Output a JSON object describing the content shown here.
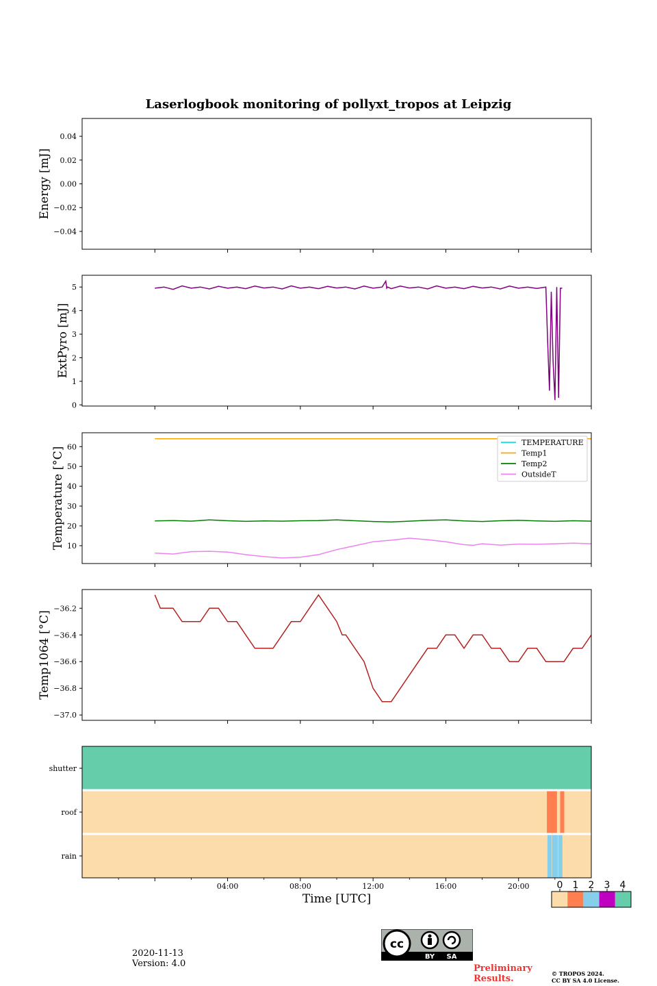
{
  "chart_data": {
    "title": "Laserlogbook monitoring of pollyxt_tropos at Leipzig",
    "xlabel": "Time [UTC]",
    "x_range_hours": [
      -4.0,
      24.0
    ],
    "panels": [
      {
        "id": "energy",
        "type": "line",
        "ylabel": "Energy [mJ]",
        "ylim": [
          -0.055,
          0.055
        ],
        "yticks": [
          0.04,
          0.02,
          0.0,
          -0.02,
          -0.04
        ],
        "ytick_labels": [
          "0.04",
          "0.02",
          "0.00",
          "−0.02",
          "−0.04"
        ],
        "series": []
      },
      {
        "id": "extpyro",
        "type": "line",
        "ylabel": "ExtPyro [mJ]",
        "ylim": [
          -0.05,
          5.5
        ],
        "yticks": [
          5,
          4,
          3,
          2,
          1,
          0
        ],
        "ytick_labels": [
          "5",
          "4",
          "3",
          "2",
          "1",
          "0"
        ],
        "series": [
          {
            "name": "ExtPyro",
            "color": "#800080",
            "x": [
              0.0,
              0.5,
              1.0,
              1.5,
              2.0,
              2.5,
              3.0,
              3.5,
              4.0,
              4.5,
              5.0,
              5.5,
              6.0,
              6.5,
              7.0,
              7.5,
              8.0,
              8.5,
              9.0,
              9.5,
              10.0,
              10.5,
              11.0,
              11.5,
              12.0,
              12.5,
              12.7,
              12.75,
              12.8,
              13.0,
              13.5,
              14.0,
              14.5,
              15.0,
              15.5,
              16.0,
              16.5,
              17.0,
              17.5,
              18.0,
              18.5,
              19.0,
              19.5,
              20.0,
              20.5,
              21.0,
              21.5,
              21.6,
              21.7,
              21.8,
              21.9,
              22.0,
              22.1,
              22.2,
              22.3,
              22.4
            ],
            "y": [
              4.95,
              5.0,
              4.9,
              5.05,
              4.95,
              5.0,
              4.92,
              5.03,
              4.95,
              5.0,
              4.93,
              5.04,
              4.96,
              5.0,
              4.92,
              5.05,
              4.95,
              5.0,
              4.93,
              5.03,
              4.96,
              5.0,
              4.92,
              5.04,
              4.95,
              5.0,
              5.25,
              4.95,
              5.0,
              4.93,
              5.04,
              4.96,
              5.0,
              4.92,
              5.05,
              4.95,
              5.0,
              4.93,
              5.03,
              4.96,
              5.0,
              4.92,
              5.04,
              4.95,
              5.0,
              4.94,
              5.0,
              2.7,
              0.6,
              4.8,
              1.8,
              0.2,
              5.0,
              0.3,
              4.95,
              4.95
            ]
          }
        ]
      },
      {
        "id": "temperature",
        "type": "line",
        "ylabel": "Temperature [°C]",
        "ylim": [
          1,
          67
        ],
        "yticks": [
          60,
          50,
          40,
          30,
          20,
          10
        ],
        "ytick_labels": [
          "60",
          "50",
          "40",
          "30",
          "20",
          "10"
        ],
        "legend_position": "upper-right",
        "series": [
          {
            "name": "TEMPERATURE",
            "color": "#00e5ee",
            "x": [],
            "y": []
          },
          {
            "name": "Temp1",
            "color": "#ffa500",
            "x": [
              0,
              24
            ],
            "y": [
              64,
              64
            ]
          },
          {
            "name": "Temp2",
            "color": "#008000",
            "x": [
              0,
              1,
              2,
              3,
              4,
              5,
              6,
              7,
              8,
              9,
              10,
              11,
              12,
              13,
              14,
              15,
              16,
              17,
              18,
              19,
              20,
              21,
              22,
              23,
              24
            ],
            "y": [
              22.5,
              22.7,
              22.4,
              23.0,
              22.6,
              22.3,
              22.5,
              22.4,
              22.6,
              22.7,
              23.0,
              22.6,
              22.2,
              22.0,
              22.4,
              22.8,
              23.0,
              22.5,
              22.2,
              22.6,
              22.8,
              22.5,
              22.3,
              22.6,
              22.4
            ]
          },
          {
            "name": "OutsideT",
            "color": "#ee82ee",
            "x": [
              0,
              1,
              2,
              3,
              4,
              5,
              6,
              7,
              8,
              9,
              10,
              11,
              12,
              13,
              14,
              15,
              16,
              17,
              17.5,
              18,
              19,
              20,
              21,
              22,
              23,
              24
            ],
            "y": [
              6.3,
              5.8,
              7.0,
              7.2,
              6.8,
              5.5,
              4.5,
              3.8,
              4.2,
              5.5,
              8.0,
              10.0,
              12.0,
              12.8,
              13.8,
              13.0,
              12.0,
              10.5,
              10.2,
              11.0,
              10.3,
              10.8,
              10.7,
              11.0,
              11.3,
              11.0
            ]
          }
        ]
      },
      {
        "id": "temp1064",
        "type": "line",
        "ylabel": "Temp1064 [°C]",
        "ylim": [
          -37.04,
          -36.06
        ],
        "yticks": [
          -36.2,
          -36.4,
          -36.6,
          -36.8,
          -37.0
        ],
        "ytick_labels": [
          "−36.2",
          "−36.4",
          "−36.6",
          "−36.8",
          "−37.0"
        ],
        "series": [
          {
            "name": "Temp1064",
            "color": "#b22222",
            "x": [
              0,
              0.3,
              0.5,
              1.0,
              1.5,
              2.0,
              2.5,
              3.0,
              3.5,
              4.0,
              4.5,
              5.0,
              5.5,
              6.0,
              6.5,
              7.0,
              7.5,
              8.0,
              8.5,
              9.0,
              9.5,
              10.0,
              10.3,
              10.5,
              11.0,
              11.5,
              12.0,
              12.5,
              13.0,
              13.5,
              14.0,
              14.5,
              15.0,
              15.5,
              16.0,
              16.5,
              17.0,
              17.5,
              18.0,
              18.5,
              19.0,
              19.5,
              20.0,
              20.5,
              21.0,
              21.5,
              22.0,
              22.5,
              23.0,
              23.5,
              24.0
            ],
            "y": [
              -36.1,
              -36.2,
              -36.2,
              -36.2,
              -36.3,
              -36.3,
              -36.3,
              -36.2,
              -36.2,
              -36.3,
              -36.3,
              -36.4,
              -36.5,
              -36.5,
              -36.5,
              -36.4,
              -36.3,
              -36.3,
              -36.2,
              -36.1,
              -36.2,
              -36.3,
              -36.4,
              -36.4,
              -36.5,
              -36.6,
              -36.8,
              -36.9,
              -36.9,
              -36.8,
              -36.7,
              -36.6,
              -36.5,
              -36.5,
              -36.4,
              -36.4,
              -36.5,
              -36.4,
              -36.4,
              -36.5,
              -36.5,
              -36.6,
              -36.6,
              -36.5,
              -36.5,
              -36.6,
              -36.6,
              -36.6,
              -36.5,
              -36.5,
              -36.4
            ]
          }
        ]
      },
      {
        "id": "status",
        "type": "heatmap",
        "rows": [
          "shutter",
          "roof",
          "rain"
        ],
        "row_base_values": [
          4,
          0,
          0
        ],
        "events": [
          {
            "row": "roof",
            "value": 1,
            "x": [
              21.67,
              21.83,
              22.0,
              22.4
            ]
          },
          {
            "row": "rain",
            "value": 2,
            "x": [
              21.7,
              21.95,
              22.05,
              22.3
            ]
          }
        ],
        "xticks": [
          0,
          4,
          8,
          12,
          16,
          20
        ],
        "xtick_labels": [
          "04:00",
          "08:00",
          "12:00",
          "16:00",
          "20:00"
        ],
        "xtick_label_hours": [
          4,
          8,
          12,
          16,
          20
        ],
        "colorbar": {
          "ticks": [
            "0",
            "1",
            "2",
            "3",
            "4"
          ],
          "colors": [
            "#fddcac",
            "#ff7f50",
            "#87ceeb",
            "#c000c0",
            "#66cdaa"
          ]
        }
      }
    ]
  },
  "footer": {
    "date": "2020-11-13",
    "version": "Version: 4.0",
    "preliminary_line1": "Preliminary",
    "preliminary_line2": "Results.",
    "copyright_line1": "© TROPOS 2024.",
    "copyright_line2": "CC BY SA 4.0 License.",
    "cc_badge_left": "BY",
    "cc_badge_right": "SA"
  }
}
